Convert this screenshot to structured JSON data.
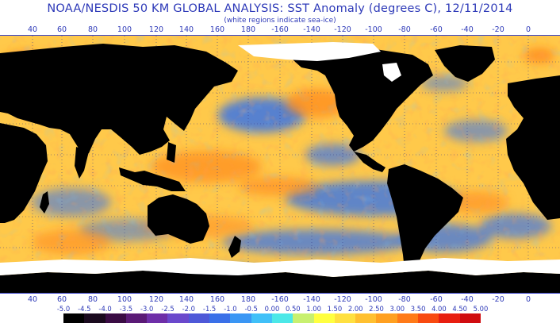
{
  "header": {
    "title": "NOAA/NESDIS 50 KM GLOBAL ANALYSIS: SST Anomaly (degrees C), 12/11/2014",
    "subtitle": "(white regions indicate sea-ice)"
  },
  "longitude_labels": [
    "40",
    "60",
    "80",
    "100",
    "120",
    "140",
    "160",
    "180",
    "-160",
    "-140",
    "-120",
    "-100",
    "-80",
    "-60",
    "-40",
    "-20",
    "0"
  ],
  "color_scale": {
    "labels": [
      "-5.0",
      "-4.5",
      "-4.0",
      "-3.5",
      "-3.0",
      "-2.5",
      "-2.0",
      "-1.5",
      "-1.0",
      "-0.5",
      "0.00",
      "0.50",
      "1.00",
      "1.50",
      "2.00",
      "2.50",
      "3.00",
      "3.50",
      "4.00",
      "4.50",
      "5.00"
    ],
    "colors": [
      "#000000",
      "#1a0a1e",
      "#3a0c44",
      "#5a1a76",
      "#6e2ea8",
      "#6a48cc",
      "#4e58d8",
      "#3a70e8",
      "#3a96f4",
      "#40c0f8",
      "#4ce8e8",
      "#c8f070",
      "#ffff40",
      "#ffe040",
      "#ffc030",
      "#ffa020",
      "#ff7a18",
      "#f84a10",
      "#e81e10",
      "#d00c10"
    ]
  },
  "map": {
    "ocean_color": "#ffc94a",
    "land_color": "#000000",
    "sea_ice_color": "#ffffff",
    "cold_color": "#3a74e6",
    "warm_color": "#ff8a1c",
    "grid_color": "#3a3f8a"
  }
}
